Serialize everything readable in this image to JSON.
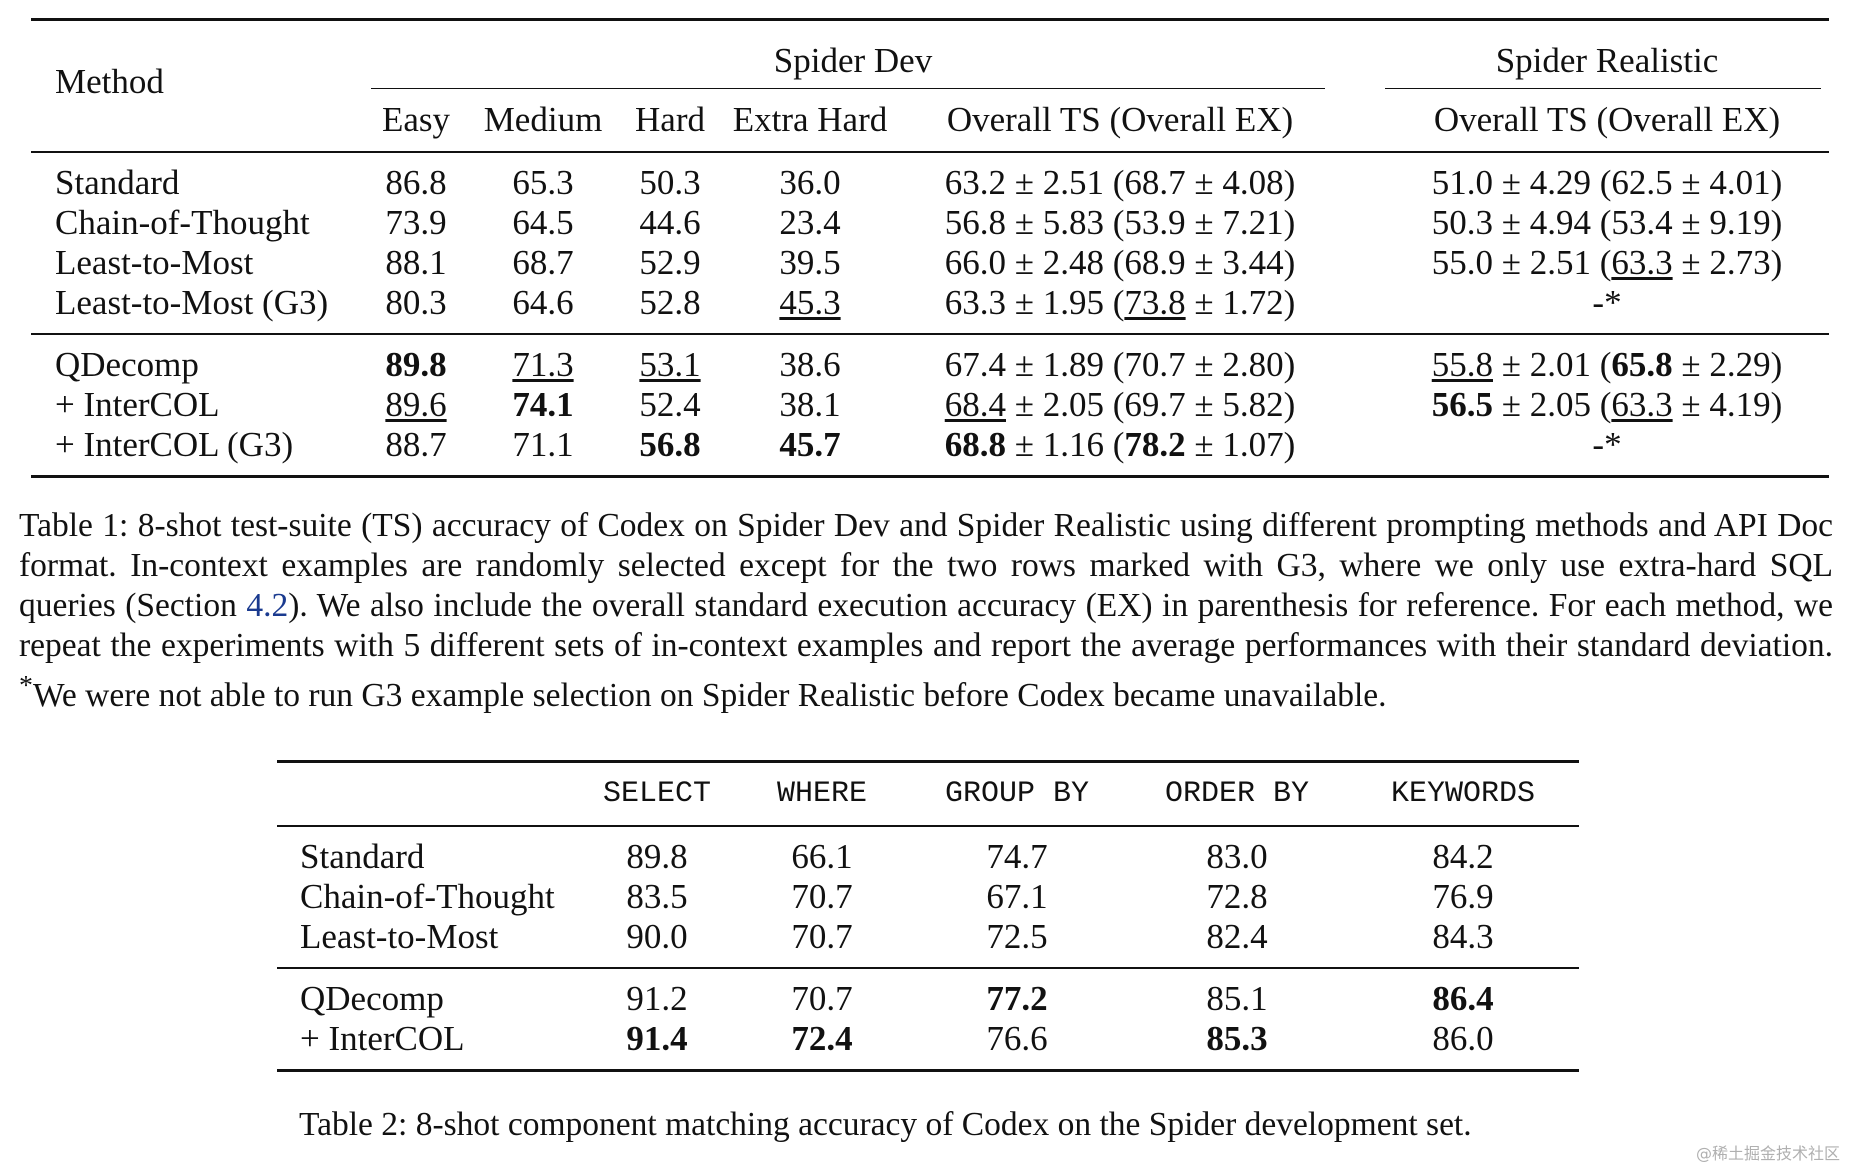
{
  "table1": {
    "method_header": "Method",
    "spider_dev": "Spider Dev",
    "spider_realistic": "Spider Realistic",
    "columns": [
      "Easy",
      "Medium",
      "Hard",
      "Extra Hard",
      "Overall TS (Overall EX)",
      "Overall TS (Overall EX)"
    ],
    "rows": [
      {
        "method": "Standard",
        "easy": "86.8",
        "medium": "65.3",
        "hard": "50.3",
        "extra": "36.0",
        "dev_ts": "63.2",
        "dev_ts_sd": "2.51",
        "dev_ex": "68.7",
        "dev_ex_sd": "4.08",
        "real_ts": "51.0",
        "real_ts_sd": "4.29",
        "real_ex": "62.5",
        "real_ex_sd": "4.01"
      },
      {
        "method": "Chain-of-Thought",
        "easy": "73.9",
        "medium": "64.5",
        "hard": "44.6",
        "extra": "23.4",
        "dev_ts": "56.8",
        "dev_ts_sd": "5.83",
        "dev_ex": "53.9",
        "dev_ex_sd": "7.21",
        "real_ts": "50.3",
        "real_ts_sd": "4.94",
        "real_ex": "53.4",
        "real_ex_sd": "9.19"
      },
      {
        "method": "Least-to-Most",
        "easy": "88.1",
        "medium": "68.7",
        "hard": "52.9",
        "extra": "39.5",
        "dev_ts": "66.0",
        "dev_ts_sd": "2.48",
        "dev_ex": "68.9",
        "dev_ex_sd": "3.44",
        "real_ts": "55.0",
        "real_ts_sd": "2.51",
        "real_ex": "63.3",
        "real_ex_sd": "2.73"
      },
      {
        "method": "Least-to-Most (G3)",
        "easy": "80.3",
        "medium": "64.6",
        "hard": "52.8",
        "extra": "45.3",
        "dev_ts": "63.3",
        "dev_ts_sd": "1.95",
        "dev_ex": "73.8",
        "dev_ex_sd": "1.72",
        "real_na": "-*"
      },
      {
        "method": "QDecomp",
        "easy": "89.8",
        "medium": "71.3",
        "hard": "53.1",
        "extra": "38.6",
        "dev_ts": "67.4",
        "dev_ts_sd": "1.89",
        "dev_ex": "70.7",
        "dev_ex_sd": "2.80",
        "real_ts": "55.8",
        "real_ts_sd": "2.01",
        "real_ex": "65.8",
        "real_ex_sd": "2.29"
      },
      {
        "method": "+ InterCOL",
        "easy": "89.6",
        "medium": "74.1",
        "hard": "52.4",
        "extra": "38.1",
        "dev_ts": "68.4",
        "dev_ts_sd": "2.05",
        "dev_ex": "69.7",
        "dev_ex_sd": "5.82",
        "real_ts": "56.5",
        "real_ts_sd": "2.05",
        "real_ex": "63.3",
        "real_ex_sd": "4.19"
      },
      {
        "method": "+ InterCOL (G3)",
        "easy": "88.7",
        "medium": "71.1",
        "hard": "56.8",
        "extra": "45.7",
        "dev_ts": "68.8",
        "dev_ts_sd": "1.16",
        "dev_ex": "78.2",
        "dev_ex_sd": "1.07",
        "real_na": "-*"
      }
    ],
    "caption": {
      "label": "Table 1:",
      "part1": "8-shot test-suite (TS) accuracy of Codex on Spider Dev and Spider Realistic using different prompting methods and API Doc format. In-context examples are randomly selected except for the two rows marked with G3, where we only use extra-hard SQL queries (Section",
      "ref": "4.2",
      "part2": "). We also include the overall standard execution accuracy (EX) in parenthesis for reference. For each method, we repeat the experiments with 5 different sets of in-context examples and report the average performances with their standard deviation.",
      "note_marker": "*",
      "note": "We were not able to run G3 example selection on Spider Realistic before Codex became unavailable."
    }
  },
  "table2": {
    "columns": [
      "SELECT",
      "WHERE",
      "GROUP BY",
      "ORDER BY",
      "KEYWORDS"
    ],
    "rows": [
      {
        "method": "Standard",
        "v": [
          "89.8",
          "66.1",
          "74.7",
          "83.0",
          "84.2"
        ]
      },
      {
        "method": "Chain-of-Thought",
        "v": [
          "83.5",
          "70.7",
          "67.1",
          "72.8",
          "76.9"
        ]
      },
      {
        "method": "Least-to-Most",
        "v": [
          "90.0",
          "70.7",
          "72.5",
          "82.4",
          "84.3"
        ]
      },
      {
        "method": "QDecomp",
        "v": [
          "91.2",
          "70.7",
          "77.2",
          "85.1",
          "86.4"
        ]
      },
      {
        "method": "+ InterCOL",
        "v": [
          "91.4",
          "72.4",
          "76.6",
          "85.3",
          "86.0"
        ]
      }
    ],
    "caption": "Table 2: 8-shot component matching accuracy of Codex on the Spider development set."
  },
  "watermark": "@稀土掘金技术社区"
}
